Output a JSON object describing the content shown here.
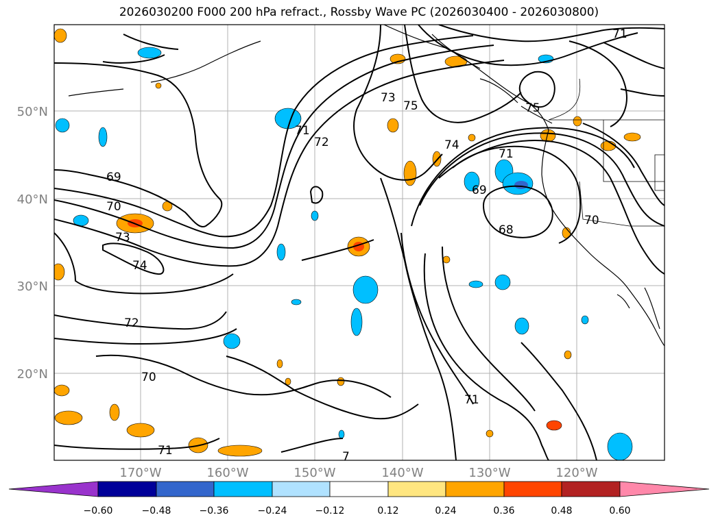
{
  "title": "2026030200 F000 200 hPa refract., Rossby Wave PC (2026030400 - 2026030800)",
  "lat_labels": [
    "50°N",
    "40°N",
    "30°N",
    "20°N"
  ],
  "lon_labels": [
    "170°W",
    "160°W",
    "150°W",
    "140°W",
    "130°W",
    "120°W"
  ],
  "contour_labels": [
    "69",
    "70",
    "73",
    "74",
    "72",
    "70",
    "71",
    "71",
    "72",
    "73",
    "75",
    "75",
    "74",
    "71",
    "69",
    "68",
    "70",
    "71",
    "71",
    "7"
  ],
  "colorbar": {
    "colors": [
      "#9933cc",
      "#000099",
      "#3366cc",
      "#00bfff",
      "#b0e2ff",
      "#ffffff",
      "#ffe680",
      "#ffa500",
      "#ff4500",
      "#b22222",
      "#ff88aa"
    ],
    "ticks": [
      "−0.60",
      "−0.48",
      "−0.36",
      "−0.24",
      "−0.12",
      "0.12",
      "0.24",
      "0.36",
      "0.48",
      "0.60"
    ]
  }
}
